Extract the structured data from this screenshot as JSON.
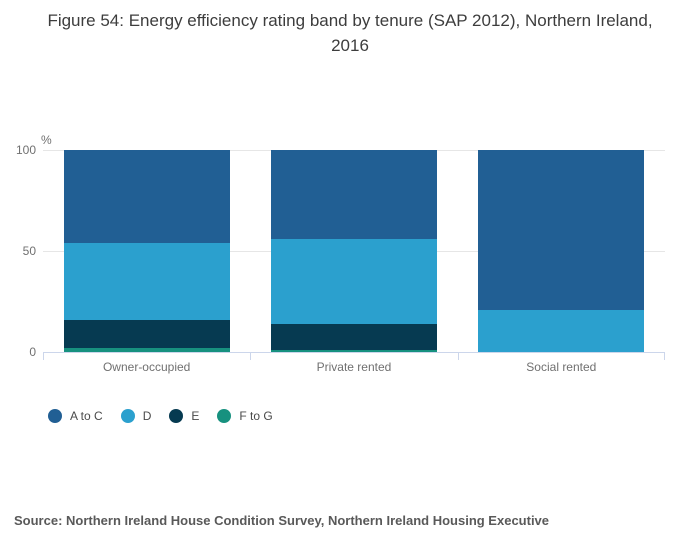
{
  "title": "Figure 54: Energy efficiency rating band by tenure (SAP 2012), Northern Ireland, 2016",
  "source": "Source: Northern Ireland House Condition Survey, Northern Ireland Housing Executive",
  "chart_data": {
    "type": "bar",
    "subtype": "stacked-percent-column",
    "title": "Figure 54: Energy efficiency rating band by tenure (SAP 2012), Northern Ireland, 2016",
    "categories": [
      "Owner-occupied",
      "Private rented",
      "Social rented"
    ],
    "series": [
      {
        "name": "A to C",
        "color": "#215f94",
        "values": [
          46,
          44,
          79
        ]
      },
      {
        "name": "D",
        "color": "#2ba0ce",
        "values": [
          38,
          42,
          21
        ]
      },
      {
        "name": "E",
        "color": "#063a51",
        "values": [
          14,
          13,
          0
        ]
      },
      {
        "name": "F to G",
        "color": "#17917f",
        "values": [
          2,
          1,
          0
        ]
      }
    ],
    "ylabel": "%",
    "xlabel": "",
    "ylim": [
      0,
      100
    ],
    "yticks": [
      0,
      50,
      100
    ],
    "grid": true,
    "legend_position": "bottom-left",
    "axis_line_color": "#ccd6eb",
    "gridline_color": "#e6e6e6",
    "tick_label_color": "#707070"
  }
}
